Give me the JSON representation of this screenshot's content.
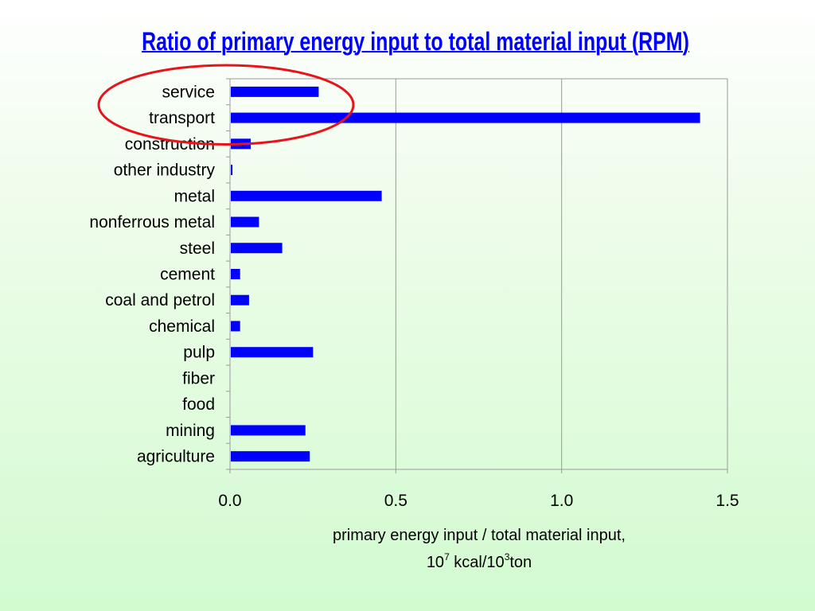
{
  "chart_data": {
    "type": "bar",
    "orientation": "horizontal",
    "title": "Ratio of primary energy input to total material input (RPM)",
    "categories": [
      "service",
      "transport",
      "construction",
      "other industry",
      "metal",
      "nonferrous metal",
      "steel",
      "cement",
      "coal and petrol",
      "chemical",
      "pulp",
      "fiber",
      "food",
      "mining",
      "agriculture"
    ],
    "values": [
      0.265,
      1.415,
      0.06,
      0.005,
      0.455,
      0.085,
      0.155,
      0.028,
      0.055,
      0.028,
      0.248,
      0,
      0,
      0.225,
      0.238
    ],
    "xlim": [
      0,
      1.5
    ],
    "xticks": [
      "0.0",
      "0.5",
      "1.0",
      "1.5"
    ],
    "xlabel": {
      "line1": "primary energy input / total material input,",
      "line2_a": "10",
      "line2_sup1": "7",
      "line2_b": " kcal/10",
      "line2_sup2": "3",
      "line2_c": "ton"
    },
    "grid": "vertical",
    "bar_color": "#0000ff",
    "highlight": {
      "shape": "ellipse",
      "color": "#e8141c",
      "categories": [
        "service",
        "transport"
      ]
    }
  }
}
